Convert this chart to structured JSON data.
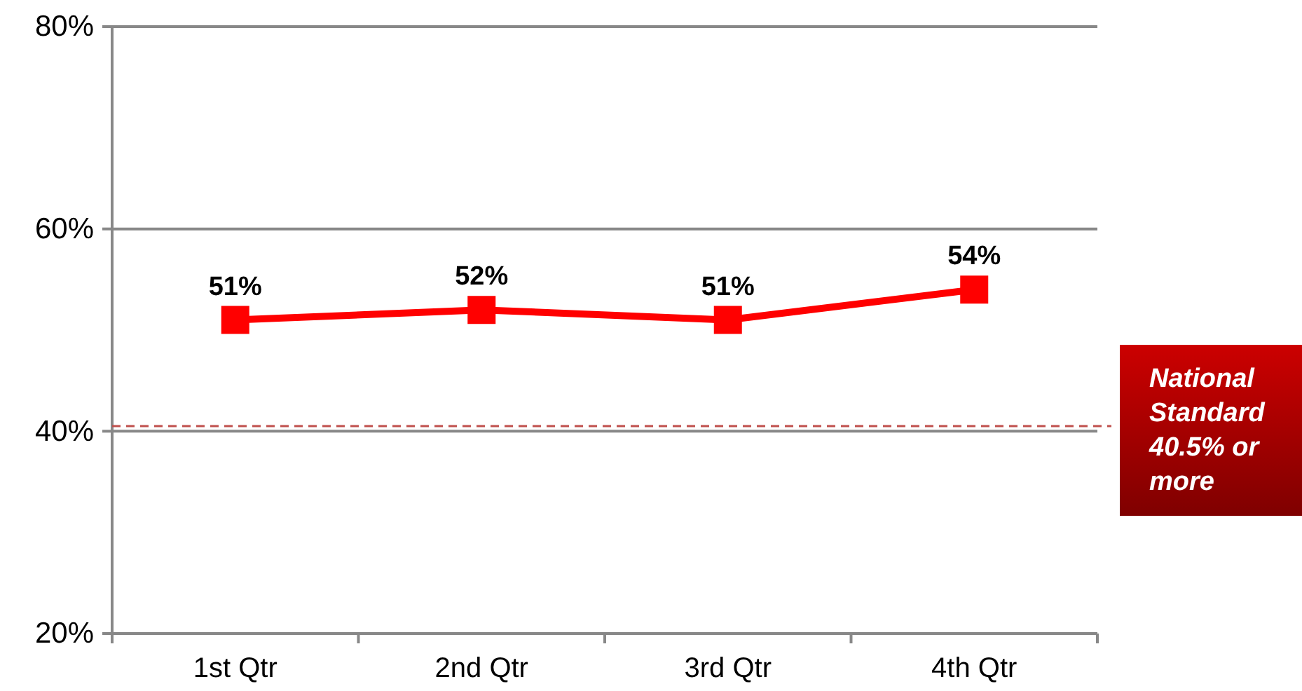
{
  "chart_data": {
    "type": "line",
    "categories": [
      "1st Qtr",
      "2nd Qtr",
      "3rd Qtr",
      "4th Qtr"
    ],
    "series": [
      {
        "color": "#ff0000",
        "values": [
          51,
          52,
          51,
          54
        ],
        "value_labels": [
          "51%",
          "52%",
          "51%",
          "54%"
        ]
      }
    ],
    "ylim": [
      20,
      80
    ],
    "yticks": [
      {
        "value": 20,
        "label": "20%"
      },
      {
        "value": 40,
        "label": "40%"
      },
      {
        "value": 60,
        "label": "60%"
      },
      {
        "value": 80,
        "label": "80%"
      }
    ],
    "grid": "y",
    "marker": "square",
    "line_style": "solid",
    "ref_lines": [
      {
        "axis": "y",
        "value": 40.5,
        "label": "National Standard 40.5% or more",
        "color": "#c0504d",
        "line_style": "dashed"
      }
    ]
  }
}
